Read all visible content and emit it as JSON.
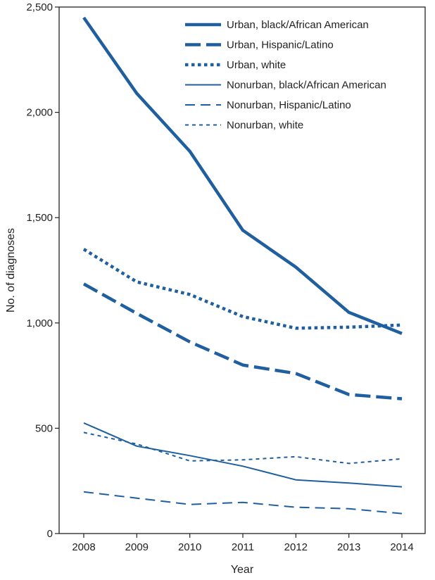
{
  "chart_data": {
    "type": "line",
    "xlabel": "Year",
    "ylabel": "No. of diagnoses",
    "x": [
      2008,
      2009,
      2010,
      2011,
      2012,
      2013,
      2014
    ],
    "ylim": [
      0,
      2500
    ],
    "yticks": [
      0,
      500,
      1000,
      1500,
      2000,
      2500
    ],
    "ytick_labels": [
      "0",
      "500",
      "1,000",
      "1,500",
      "2,000",
      "2,500"
    ],
    "grid": false,
    "legend_position": "top-right",
    "series": [
      {
        "name": "Urban, black/African American",
        "values": [
          2450,
          2090,
          1815,
          1440,
          1265,
          1050,
          950
        ],
        "style": "solid-thick"
      },
      {
        "name": "Urban, Hispanic/Latino",
        "values": [
          1185,
          1045,
          910,
          800,
          760,
          660,
          640
        ],
        "style": "dashed-thick"
      },
      {
        "name": "Urban, white",
        "values": [
          1350,
          1195,
          1135,
          1030,
          975,
          980,
          990
        ],
        "style": "dotted-thick"
      },
      {
        "name": "Nonurban, black/African American",
        "values": [
          525,
          415,
          370,
          320,
          255,
          240,
          222
        ],
        "style": "solid-thin"
      },
      {
        "name": "Nonurban, Hispanic/Latino",
        "values": [
          198,
          168,
          138,
          148,
          125,
          118,
          95
        ],
        "style": "dashed-thin"
      },
      {
        "name": "Nonurban, white",
        "values": [
          480,
          425,
          345,
          350,
          365,
          333,
          355
        ],
        "style": "dotted-thin"
      }
    ],
    "line_color": "#1f5fa0"
  }
}
